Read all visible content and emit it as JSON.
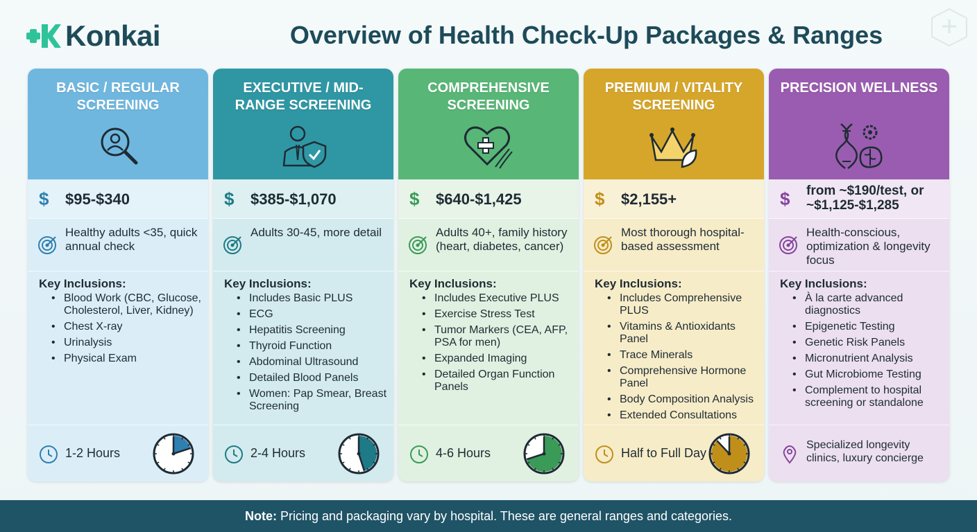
{
  "brand": {
    "name": "Konkai",
    "primary": "#1d4b59",
    "accent": "#2fc39a"
  },
  "title": "Overview of Health Check-Up Packages & Ranges",
  "labels": {
    "inclusions_heading": "Key Inclusions:"
  },
  "packages": [
    {
      "title": "BASIC / REGULAR SCREENING",
      "header_color": "#6fb7df",
      "body_color": "#dbeef7",
      "accent_color": "#2f7fb0",
      "icon": "magnifier-person-icon",
      "price": "$95-$340",
      "target": "Healthy adults <35, quick annual check",
      "inclusions": [
        "Blood Work (CBC, Glucose, Cholesterol, Liver, Kidney)",
        "Chest X-ray",
        "Urinalysis",
        "Physical Exam"
      ],
      "duration": "1-2 Hours",
      "duration_fraction": 0.2
    },
    {
      "title": "EXECUTIVE / MID-RANGE SCREENING",
      "header_color": "#2f97a4",
      "body_color": "#d3ebee",
      "accent_color": "#1e7a86",
      "icon": "executive-shield-icon",
      "price": "$385-$1,070",
      "target": "Adults 30-45, more detail",
      "inclusions": [
        "Includes Basic PLUS",
        "ECG",
        "Hepatitis Screening",
        "Thyroid Function",
        "Abdominal Ultrasound",
        "Detailed Blood Panels",
        "Women: Pap Smear, Breast Screening"
      ],
      "duration": "2-4 Hours",
      "duration_fraction": 0.45
    },
    {
      "title": "COMPREHENSIVE SCREENING",
      "header_color": "#58b677",
      "body_color": "#e0f1e1",
      "accent_color": "#3a9a57",
      "icon": "heart-dna-icon",
      "price": "$640-$1,425",
      "target": "Adults 40+, family history (heart, diabetes, cancer)",
      "inclusions": [
        "Includes Executive PLUS",
        "Exercise Stress Test",
        "Tumor Markers (CEA, AFP, PSA for men)",
        "Expanded Imaging",
        "Detailed Organ Function Panels"
      ],
      "duration": "4-6 Hours",
      "duration_fraction": 0.7
    },
    {
      "title": "PREMIUM / VITALITY SCREENING",
      "header_color": "#d6a62a",
      "body_color": "#f7ecc8",
      "accent_color": "#c08f1a",
      "icon": "crown-leaf-icon",
      "price": "$2,155+",
      "target": "Most thorough hospital-based assessment",
      "inclusions": [
        "Includes Comprehensive PLUS",
        "Vitamins & Antioxidants Panel",
        "Trace Minerals",
        "Comprehensive Hormone Panel",
        "Body Composition Analysis",
        "Extended Consultations"
      ],
      "duration": "Half to Full Day",
      "duration_fraction": 0.88
    },
    {
      "title": "PRECISION WELLNESS",
      "header_color": "#9a5cb0",
      "body_color": "#ecdff0",
      "accent_color": "#84449c",
      "icon": "dna-gear-brain-icon",
      "price": "from ~$190/test, or ~$1,125-$1,285",
      "target": "Health-conscious, optimization & longevity focus",
      "inclusions": [
        "À la carte advanced diagnostics",
        "Epigenetic Testing",
        "Genetic Risk Panels",
        "Micronutrient Analysis",
        "Gut Microbiome Testing",
        "Complement to hospital screening or standalone"
      ],
      "duration": "Specialized longevity clinics, luxury concierge",
      "duration_fraction": null
    }
  ],
  "note": {
    "label": "Note:",
    "text": " Pricing and packaging vary by hospital. These are general ranges and categories."
  }
}
